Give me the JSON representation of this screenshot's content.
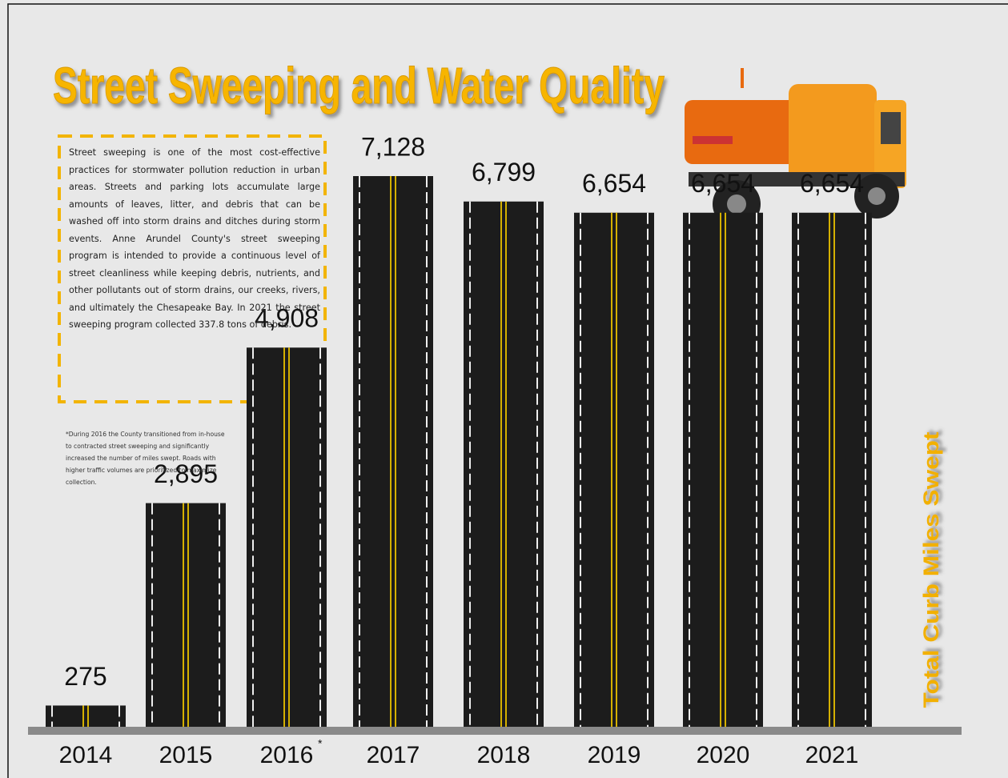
{
  "chart_data": {
    "type": "bar",
    "title": "Street Sweeping and Water Quality",
    "description": "Street sweeping is one of the most cost-effective practices for stormwater pollution reduction in urban areas. Streets and parking lots accumulate large amounts of leaves, litter, and debris that can be washed off into storm drains and ditches during storm events. Anne Arundel County's street sweeping program is intended to provide a continuous level of street cleanliness while keeping debris, nutrients, and other pollutants out of storm drains, our creeks, rivers, and ultimately the Chesapeake Bay. In 2021 the street sweeping program collected 337.8 tons of debris.",
    "footnote": "*During 2016 the County transitioned from in-house to contracted street sweeping and significantly increased the number of miles swept. Roads with higher traffic volumes are prioritized to maximize collection.",
    "footnote_marker": "*",
    "y_label": "Total Curb Miles Swept",
    "categories": [
      "2014",
      "2015",
      "2016",
      "2017",
      "2018",
      "2019",
      "2020",
      "2021"
    ],
    "values": [
      275,
      2895,
      4908,
      7128,
      6799,
      6654,
      6654,
      6654
    ],
    "value_labels": [
      "275",
      "2,895",
      "4,908",
      "7,128",
      "6,799",
      "6,654",
      "6,654",
      "6,654"
    ],
    "color": "#1c1c1c"
  }
}
